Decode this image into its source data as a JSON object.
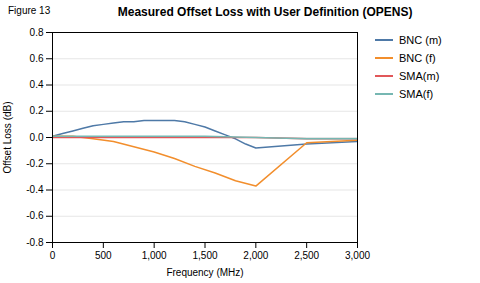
{
  "chart_data": {
    "type": "line",
    "title": "Measured Offset Loss with User Definition (OPENS)",
    "annotations": [
      "Figure 13"
    ],
    "xlabel": "Frequency (MHz)",
    "ylabel": "Offset Loss (dB)",
    "xlim": [
      0,
      3000
    ],
    "ylim": [
      -0.8,
      0.8
    ],
    "xticks": [
      0,
      500,
      {
        "value": 1000,
        "label": "1,000"
      },
      {
        "value": 1500,
        "label": "1,500"
      },
      {
        "value": 2000,
        "label": "2,000"
      },
      {
        "value": 2500,
        "label": "2,500"
      },
      {
        "value": 3000,
        "label": "3,000"
      }
    ],
    "yticks": [
      -0.8,
      -0.6,
      -0.4,
      -0.2,
      {
        "value": 0.0,
        "label": "0.0"
      },
      0.2,
      0.4,
      0.6,
      0.8
    ],
    "grid": true,
    "legend": "right",
    "series": [
      {
        "name": "BNC (m)",
        "x": [
          0,
          100,
          200,
          300,
          400,
          500,
          600,
          700,
          800,
          900,
          1000,
          1100,
          1200,
          1300,
          1400,
          1500,
          1600,
          1700,
          1800,
          1900,
          2000,
          2500,
          3000
        ],
        "values": [
          0.01,
          0.03,
          0.05,
          0.07,
          0.09,
          0.1,
          0.11,
          0.12,
          0.12,
          0.13,
          0.13,
          0.13,
          0.13,
          0.12,
          0.1,
          0.08,
          0.05,
          0.02,
          -0.01,
          -0.05,
          -0.08,
          -0.05,
          -0.03
        ]
      },
      {
        "name": "BNC (f)",
        "x": [
          0,
          200,
          400,
          600,
          800,
          1000,
          1200,
          1400,
          1600,
          1800,
          2000,
          2500,
          3000
        ],
        "values": [
          0.01,
          0.01,
          -0.01,
          -0.03,
          -0.07,
          -0.11,
          -0.16,
          -0.22,
          -0.27,
          -0.33,
          -0.37,
          -0.04,
          -0.02
        ]
      },
      {
        "name": "SMA(m)",
        "x": [
          0,
          500,
          1000,
          1500,
          2000,
          2500,
          3000
        ],
        "values": [
          0.0,
          0.0,
          0.0,
          0.0,
          0.0,
          -0.01,
          -0.01
        ]
      },
      {
        "name": "SMA(f)",
        "x": [
          0,
          500,
          1000,
          1500,
          2000,
          2500,
          3000
        ],
        "values": [
          0.01,
          0.01,
          0.01,
          0.01,
          0.0,
          -0.01,
          -0.01
        ]
      }
    ]
  }
}
